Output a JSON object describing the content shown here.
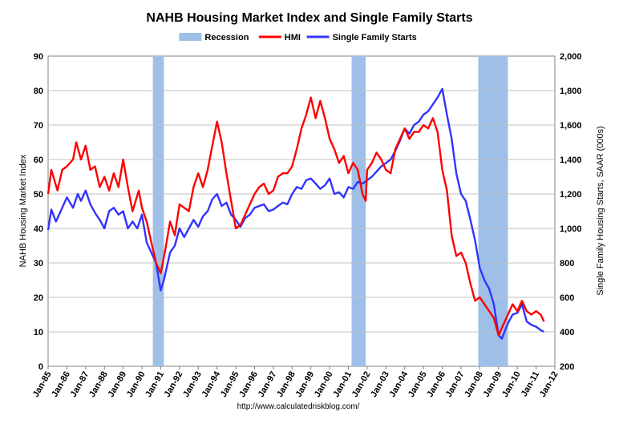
{
  "chart_data": {
    "type": "line",
    "title": "NAHB Housing Market Index and Single Family Starts",
    "source": "http://www.calculatedriskblog.com/",
    "ylabel_left": "NAHB Housing Market Index",
    "ylabel_right": "Single Family Housing Starts, SAAR (000s)",
    "ylim_left": [
      0,
      90
    ],
    "ylim_right": [
      200,
      2000
    ],
    "left_ticks": [
      "0",
      "10",
      "20",
      "30",
      "40",
      "50",
      "60",
      "70",
      "80",
      "90"
    ],
    "right_ticks": [
      "200",
      "400",
      "600",
      "800",
      "1,000",
      "1,200",
      "1,400",
      "1,600",
      "1,800",
      "2,000"
    ],
    "x_ticks": [
      "Jan-85",
      "Jan-86",
      "Jan-87",
      "Jan-88",
      "Jan-89",
      "Jan-90",
      "Jan-91",
      "Jan-92",
      "Jan-93",
      "Jan-94",
      "Jan-95",
      "Jan-96",
      "Jan-97",
      "Jan-98",
      "Jan-99",
      "Jan-00",
      "Jan-01",
      "Jan-02",
      "Jan-03",
      "Jan-04",
      "Jan-05",
      "Jan-06",
      "Jan-07",
      "Jan-08",
      "Jan-09",
      "Jan-10",
      "Jan-11",
      "Jan-12"
    ],
    "xlim_years": [
      1985,
      2012
    ],
    "grid": "horizontal",
    "legend_position": "top-center",
    "recessions": [
      {
        "start": 1990.58,
        "end": 1991.17
      },
      {
        "start": 2001.17,
        "end": 2001.92
      },
      {
        "start": 2007.92,
        "end": 2009.5
      }
    ],
    "series": [
      {
        "name": "HMI",
        "axis": "left",
        "color": "#ff0000",
        "points": [
          [
            1985.0,
            50
          ],
          [
            1985.17,
            57
          ],
          [
            1985.5,
            51
          ],
          [
            1985.75,
            57
          ],
          [
            1986.0,
            58
          ],
          [
            1986.33,
            60
          ],
          [
            1986.5,
            65
          ],
          [
            1986.75,
            60
          ],
          [
            1987.0,
            64
          ],
          [
            1987.25,
            57
          ],
          [
            1987.5,
            58
          ],
          [
            1987.75,
            52
          ],
          [
            1988.0,
            55
          ],
          [
            1988.25,
            51
          ],
          [
            1988.5,
            56
          ],
          [
            1988.75,
            52
          ],
          [
            1989.0,
            60
          ],
          [
            1989.25,
            52
          ],
          [
            1989.5,
            45
          ],
          [
            1989.83,
            51
          ],
          [
            1990.0,
            46
          ],
          [
            1990.25,
            42
          ],
          [
            1990.5,
            36
          ],
          [
            1990.75,
            30
          ],
          [
            1991.0,
            27
          ],
          [
            1991.25,
            34
          ],
          [
            1991.5,
            42
          ],
          [
            1991.75,
            38
          ],
          [
            1992.0,
            47
          ],
          [
            1992.25,
            46
          ],
          [
            1992.5,
            45
          ],
          [
            1992.75,
            52
          ],
          [
            1993.0,
            56
          ],
          [
            1993.25,
            52
          ],
          [
            1993.5,
            57
          ],
          [
            1993.75,
            64
          ],
          [
            1994.0,
            71
          ],
          [
            1994.25,
            65
          ],
          [
            1994.5,
            56
          ],
          [
            1994.75,
            48
          ],
          [
            1995.0,
            40
          ],
          [
            1995.25,
            41
          ],
          [
            1995.5,
            44
          ],
          [
            1995.75,
            47
          ],
          [
            1996.0,
            50
          ],
          [
            1996.25,
            52
          ],
          [
            1996.5,
            53
          ],
          [
            1996.75,
            50
          ],
          [
            1997.0,
            51
          ],
          [
            1997.25,
            55
          ],
          [
            1997.5,
            56
          ],
          [
            1997.75,
            56
          ],
          [
            1998.0,
            58
          ],
          [
            1998.25,
            63
          ],
          [
            1998.5,
            69
          ],
          [
            1998.75,
            73
          ],
          [
            1999.0,
            78
          ],
          [
            1999.25,
            72
          ],
          [
            1999.5,
            77
          ],
          [
            1999.75,
            72
          ],
          [
            2000.0,
            66
          ],
          [
            2000.25,
            63
          ],
          [
            2000.5,
            59
          ],
          [
            2000.75,
            61
          ],
          [
            2001.0,
            56
          ],
          [
            2001.25,
            59
          ],
          [
            2001.5,
            57
          ],
          [
            2001.75,
            50
          ],
          [
            2001.92,
            48
          ],
          [
            2002.0,
            57
          ],
          [
            2002.25,
            59
          ],
          [
            2002.5,
            62
          ],
          [
            2002.75,
            60
          ],
          [
            2003.0,
            57
          ],
          [
            2003.25,
            56
          ],
          [
            2003.5,
            63
          ],
          [
            2003.75,
            66
          ],
          [
            2004.0,
            69
          ],
          [
            2004.25,
            66
          ],
          [
            2004.5,
            68
          ],
          [
            2004.75,
            68
          ],
          [
            2005.0,
            70
          ],
          [
            2005.25,
            69
          ],
          [
            2005.5,
            72
          ],
          [
            2005.75,
            68
          ],
          [
            2006.0,
            57
          ],
          [
            2006.25,
            51
          ],
          [
            2006.5,
            38
          ],
          [
            2006.75,
            32
          ],
          [
            2007.0,
            33
          ],
          [
            2007.25,
            30
          ],
          [
            2007.5,
            24
          ],
          [
            2007.75,
            19
          ],
          [
            2008.0,
            20
          ],
          [
            2008.25,
            18
          ],
          [
            2008.5,
            16
          ],
          [
            2008.75,
            14
          ],
          [
            2009.0,
            9
          ],
          [
            2009.25,
            12
          ],
          [
            2009.5,
            15
          ],
          [
            2009.75,
            18
          ],
          [
            2010.0,
            16
          ],
          [
            2010.25,
            19
          ],
          [
            2010.5,
            16
          ],
          [
            2010.75,
            15
          ],
          [
            2011.0,
            16
          ],
          [
            2011.25,
            15
          ],
          [
            2011.42,
            13
          ]
        ]
      },
      {
        "name": "Single Family Starts",
        "axis": "right",
        "color": "#3333ff",
        "points": [
          [
            1985.0,
            990
          ],
          [
            1985.17,
            1110
          ],
          [
            1985.42,
            1040
          ],
          [
            1985.67,
            1100
          ],
          [
            1986.0,
            1180
          ],
          [
            1986.33,
            1120
          ],
          [
            1986.58,
            1200
          ],
          [
            1986.75,
            1160
          ],
          [
            1987.0,
            1220
          ],
          [
            1987.25,
            1140
          ],
          [
            1987.5,
            1090
          ],
          [
            1987.75,
            1050
          ],
          [
            1988.0,
            1000
          ],
          [
            1988.25,
            1100
          ],
          [
            1988.5,
            1120
          ],
          [
            1988.75,
            1080
          ],
          [
            1989.0,
            1100
          ],
          [
            1989.25,
            1000
          ],
          [
            1989.5,
            1040
          ],
          [
            1989.75,
            1000
          ],
          [
            1990.0,
            1080
          ],
          [
            1990.25,
            920
          ],
          [
            1990.5,
            860
          ],
          [
            1990.75,
            800
          ],
          [
            1991.0,
            640
          ],
          [
            1991.17,
            700
          ],
          [
            1991.5,
            860
          ],
          [
            1991.75,
            900
          ],
          [
            1992.0,
            1000
          ],
          [
            1992.25,
            950
          ],
          [
            1992.5,
            1000
          ],
          [
            1992.75,
            1050
          ],
          [
            1993.0,
            1010
          ],
          [
            1993.25,
            1070
          ],
          [
            1993.5,
            1100
          ],
          [
            1993.75,
            1170
          ],
          [
            1994.0,
            1200
          ],
          [
            1994.25,
            1130
          ],
          [
            1994.5,
            1150
          ],
          [
            1994.75,
            1080
          ],
          [
            1995.0,
            1050
          ],
          [
            1995.25,
            1010
          ],
          [
            1995.5,
            1060
          ],
          [
            1995.75,
            1080
          ],
          [
            1996.0,
            1120
          ],
          [
            1996.25,
            1130
          ],
          [
            1996.5,
            1140
          ],
          [
            1996.75,
            1100
          ],
          [
            1997.0,
            1110
          ],
          [
            1997.25,
            1130
          ],
          [
            1997.5,
            1150
          ],
          [
            1997.75,
            1140
          ],
          [
            1998.0,
            1200
          ],
          [
            1998.25,
            1240
          ],
          [
            1998.5,
            1230
          ],
          [
            1998.75,
            1280
          ],
          [
            1999.0,
            1290
          ],
          [
            1999.25,
            1260
          ],
          [
            1999.5,
            1230
          ],
          [
            1999.75,
            1250
          ],
          [
            2000.0,
            1290
          ],
          [
            2000.25,
            1200
          ],
          [
            2000.5,
            1210
          ],
          [
            2000.75,
            1180
          ],
          [
            2001.0,
            1240
          ],
          [
            2001.25,
            1230
          ],
          [
            2001.5,
            1270
          ],
          [
            2001.75,
            1260
          ],
          [
            2002.0,
            1280
          ],
          [
            2002.25,
            1300
          ],
          [
            2002.5,
            1330
          ],
          [
            2002.75,
            1360
          ],
          [
            2003.0,
            1380
          ],
          [
            2003.25,
            1400
          ],
          [
            2003.5,
            1450
          ],
          [
            2003.75,
            1510
          ],
          [
            2004.0,
            1580
          ],
          [
            2004.25,
            1550
          ],
          [
            2004.5,
            1600
          ],
          [
            2004.75,
            1620
          ],
          [
            2005.0,
            1660
          ],
          [
            2005.25,
            1680
          ],
          [
            2005.5,
            1720
          ],
          [
            2005.75,
            1760
          ],
          [
            2006.0,
            1810
          ],
          [
            2006.25,
            1660
          ],
          [
            2006.5,
            1520
          ],
          [
            2006.75,
            1320
          ],
          [
            2007.0,
            1200
          ],
          [
            2007.25,
            1160
          ],
          [
            2007.5,
            1050
          ],
          [
            2007.75,
            930
          ],
          [
            2008.0,
            770
          ],
          [
            2008.25,
            700
          ],
          [
            2008.5,
            650
          ],
          [
            2008.75,
            560
          ],
          [
            2009.0,
            380
          ],
          [
            2009.17,
            360
          ],
          [
            2009.5,
            450
          ],
          [
            2009.75,
            500
          ],
          [
            2010.0,
            510
          ],
          [
            2010.25,
            560
          ],
          [
            2010.5,
            460
          ],
          [
            2010.75,
            440
          ],
          [
            2011.0,
            430
          ],
          [
            2011.25,
            410
          ],
          [
            2011.42,
            400
          ]
        ]
      }
    ]
  },
  "legend": {
    "items": [
      {
        "label": "Recession",
        "color": "#9ec0e8",
        "kind": "box"
      },
      {
        "label": "HMI",
        "color": "#ff0000",
        "kind": "line"
      },
      {
        "label": "Single Family Starts",
        "color": "#3333ff",
        "kind": "line"
      }
    ]
  }
}
